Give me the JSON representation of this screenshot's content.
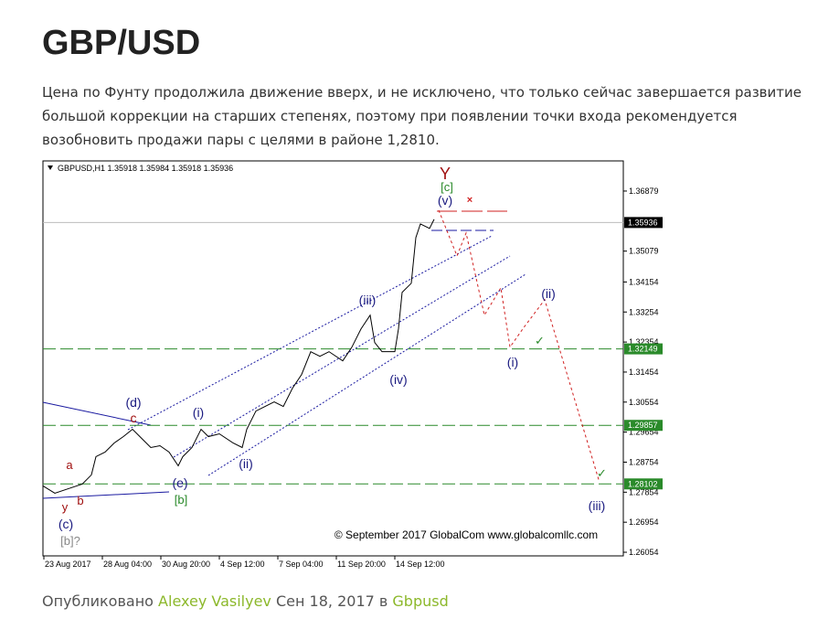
{
  "header": {
    "title": "GBP/USD"
  },
  "body": {
    "paragraph": "Цена по Фунту продолжила движение вверх, и не  исключено, что только сейчас завершается развитие большой коррекции на старших степенях, поэтому при появлении точки входа рекомендуется возобновить продажи пары с целями в районе 1,2810."
  },
  "chart_data": {
    "type": "line",
    "header": "GBPUSD,H1  1.35918 1.35984 1.35918 1.35936",
    "xlim": [
      0,
      635
    ],
    "xticks": [
      {
        "value": 1,
        "label": "23 Aug 2017"
      },
      {
        "value": 65,
        "label": "28 Aug 04:00"
      },
      {
        "value": 129,
        "label": "30 Aug 20:00"
      },
      {
        "value": 193,
        "label": "4 Sep 12:00"
      },
      {
        "value": 257,
        "label": "7 Sep 04:00"
      },
      {
        "value": 321,
        "label": "11 Sep 20:00"
      },
      {
        "value": 385,
        "label": "14 Sep 12:00"
      }
    ],
    "ylim": [
      1.25945,
      1.37782
    ],
    "yticks": [
      1.36879,
      1.35079,
      1.34154,
      1.33254,
      1.32354,
      1.31454,
      1.30554,
      1.29654,
      1.28754,
      1.27854,
      1.26954,
      1.26054
    ],
    "series": [
      {
        "color": "#000000",
        "x": [
          0,
          13,
          28,
          43,
          53,
          58,
          68,
          78,
          88,
          98,
          108,
          118,
          128,
          138,
          148,
          153,
          163,
          173,
          181,
          193,
          208,
          218,
          223,
          233,
          243,
          253,
          263,
          273,
          283,
          293,
          303,
          313,
          328,
          338,
          348,
          358,
          363,
          371,
          385,
          389,
          393,
          403,
          408,
          413,
          423,
          428
        ],
        "values": [
          1.28043,
          1.27824,
          1.27961,
          1.28098,
          1.28372,
          1.28919,
          1.29055,
          1.29329,
          1.2952,
          1.29739,
          1.29466,
          1.29192,
          1.29247,
          1.29055,
          1.28645,
          1.28919,
          1.29192,
          1.29739,
          1.2952,
          1.29603,
          1.29329,
          1.29192,
          1.29739,
          1.30286,
          1.30423,
          1.3056,
          1.30423,
          1.3097,
          1.31381,
          1.32065,
          1.31928,
          1.32065,
          1.31791,
          1.32201,
          1.32748,
          1.33159,
          1.32338,
          1.32065,
          1.32065,
          1.32748,
          1.33843,
          1.34116,
          1.35484,
          1.35894,
          1.35758,
          1.36031
        ]
      },
      {
        "color": "#d02020",
        "dashed": true,
        "x": [
          433,
          453,
          463,
          483,
          501,
          511,
          525,
          549,
          608
        ],
        "values": [
          1.36305,
          1.34937,
          1.35621,
          1.33159,
          1.33979,
          1.32201,
          1.32748,
          1.33624,
          1.28235
        ]
      }
    ],
    "hlines": [
      {
        "value": 1.35936,
        "color": "#bbbbbb",
        "label_bg": "#000000"
      },
      {
        "value": 1.32149,
        "color": "#2a8a2a",
        "label_bg": "#2a8a2a"
      },
      {
        "value": 1.29857,
        "color": "#2a8a2a",
        "label_bg": "#2a8a2a"
      },
      {
        "value": 1.28102,
        "color": "#2a8a2a",
        "label_bg": "#2a8a2a"
      }
    ],
    "annotations": [
      "Y",
      "[c]",
      "(v)",
      "(iii)",
      "(iv)",
      "(i)",
      "(ii)",
      "(d)",
      "c",
      "a",
      "b",
      "y",
      "(e)",
      "[b]",
      "(c)",
      "[b]?",
      "(i)",
      "(ii)",
      "(iii)"
    ],
    "copyright": "© September 2017 GlobalCom www.globalcomllc.com"
  },
  "footer": {
    "published": "Опубликовано",
    "author": "Alexey Vasilyev",
    "date": "Сен 18, 2017 в",
    "category": "Gbpusd"
  }
}
